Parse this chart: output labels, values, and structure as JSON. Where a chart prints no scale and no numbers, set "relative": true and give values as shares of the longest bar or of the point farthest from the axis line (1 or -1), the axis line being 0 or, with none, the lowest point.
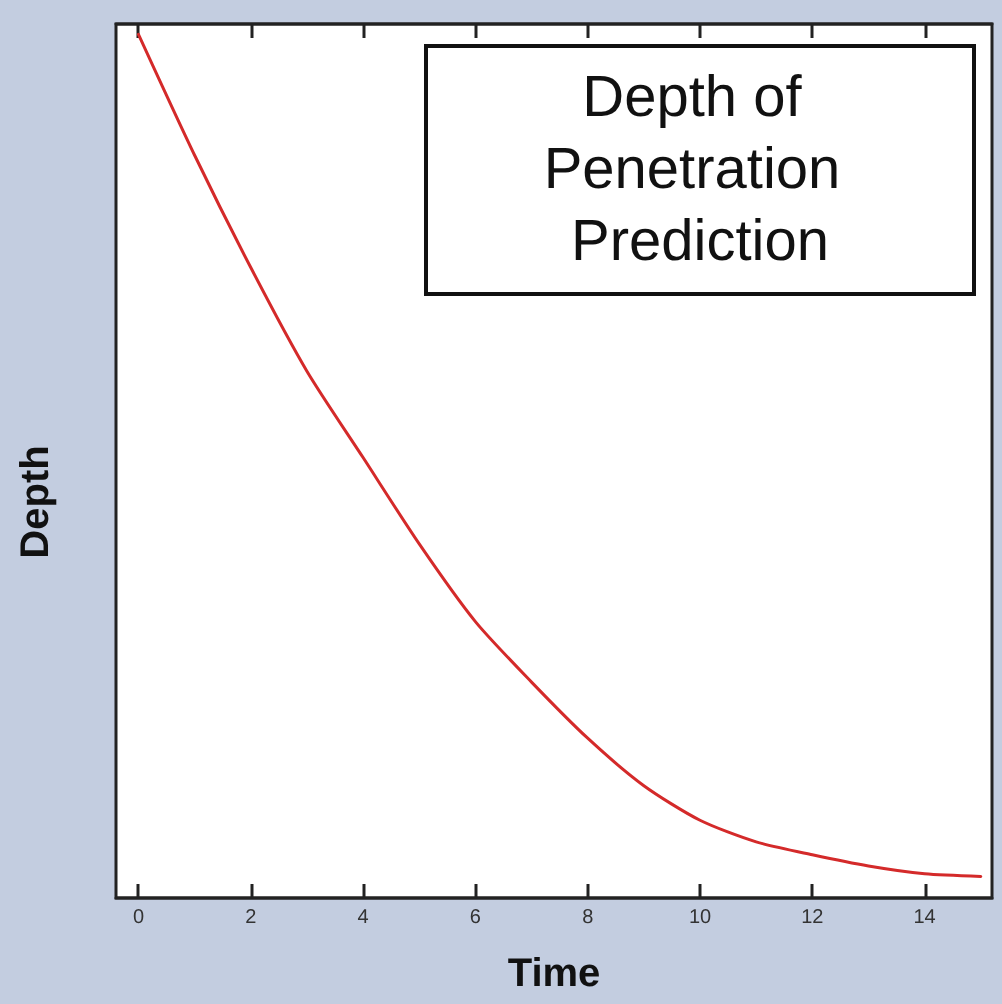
{
  "chart_data": {
    "type": "line",
    "title": "Depth of Penetration Prediction",
    "xlabel": "Time",
    "ylabel": "Depth",
    "relative": true,
    "x": [
      0,
      1,
      2,
      3,
      4,
      5,
      6,
      7,
      8,
      9,
      10,
      11,
      12,
      13,
      14,
      15
    ],
    "series": [
      {
        "color": "#d42a2a",
        "values": [
          1.0,
          0.86,
          0.73,
          0.61,
          0.51,
          0.41,
          0.32,
          0.25,
          0.185,
          0.13,
          0.09,
          0.065,
          0.05,
          0.037,
          0.028,
          0.025
        ]
      }
    ],
    "xlim": [
      -0.4,
      15.2
    ],
    "xticks": [
      0,
      2,
      4,
      6,
      8,
      10,
      12,
      14
    ],
    "grid": false,
    "marker": "none",
    "line_style": "solid"
  }
}
